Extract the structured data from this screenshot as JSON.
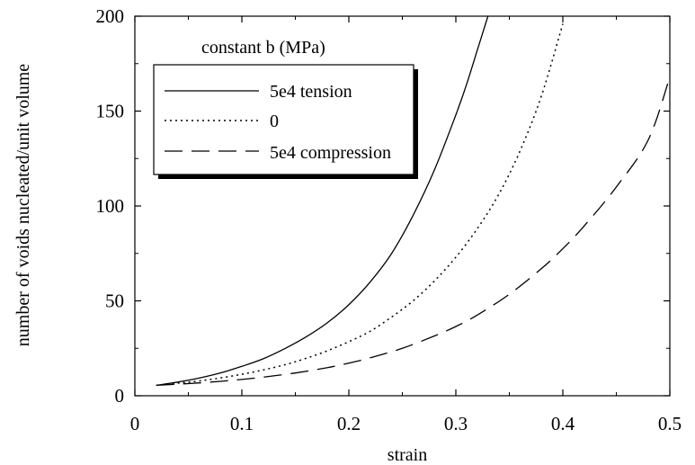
{
  "chart_data": {
    "type": "line",
    "title": "",
    "xlabel": "strain",
    "ylabel": "number of voids nucleated/unit volume",
    "xlim": [
      0,
      0.5
    ],
    "ylim": [
      0,
      200
    ],
    "xticks": [
      0,
      0.1,
      0.2,
      0.3,
      0.4,
      0.5
    ],
    "xtick_labels": [
      "0",
      "0.1",
      "0.2",
      "0.3",
      "0.4",
      "0.5"
    ],
    "yticks": [
      0,
      50,
      100,
      150,
      200
    ],
    "ytick_labels": [
      "0",
      "50",
      "100",
      "150",
      "200"
    ],
    "grid": false,
    "legend": {
      "title": "constant b (MPa)",
      "placement": "top-left"
    },
    "series": [
      {
        "name": "5e4 tension",
        "line_style": "solid",
        "color": "#000000",
        "x": [
          0.02,
          0.04,
          0.06,
          0.08,
          0.1,
          0.12,
          0.14,
          0.16,
          0.18,
          0.2,
          0.22,
          0.24,
          0.26,
          0.28,
          0.3,
          0.31,
          0.32,
          0.33
        ],
        "y": [
          5.5,
          7.2,
          9.3,
          12.0,
          15.5,
          19.5,
          24.8,
          31.0,
          38.5,
          48.0,
          60.0,
          75.0,
          95.0,
          119.0,
          148.0,
          164.0,
          182.0,
          200.0
        ]
      },
      {
        "name": "0",
        "line_style": "dotted",
        "color": "#000000",
        "x": [
          0.02,
          0.04,
          0.06,
          0.08,
          0.1,
          0.12,
          0.14,
          0.16,
          0.18,
          0.2,
          0.22,
          0.24,
          0.26,
          0.28,
          0.3,
          0.32,
          0.34,
          0.36,
          0.38,
          0.4
        ],
        "y": [
          5.5,
          6.6,
          7.8,
          9.4,
          11.3,
          13.6,
          16.3,
          19.7,
          23.7,
          28.5,
          34.0,
          41.5,
          50.0,
          60.5,
          73.0,
          88.0,
          106.0,
          129.0,
          158.0,
          196.0
        ]
      },
      {
        "name": "5e4 compression",
        "line_style": "dashed",
        "color": "#000000",
        "x": [
          0.02,
          0.05,
          0.08,
          0.1,
          0.12,
          0.15,
          0.18,
          0.2,
          0.22,
          0.25,
          0.28,
          0.3,
          0.32,
          0.35,
          0.38,
          0.4,
          0.42,
          0.45,
          0.48,
          0.5
        ],
        "y": [
          5.5,
          6.4,
          7.6,
          8.6,
          9.8,
          12.0,
          14.8,
          17.2,
          20.0,
          25.0,
          31.5,
          36.5,
          42.5,
          53.5,
          67.0,
          77.5,
          89.5,
          110.0,
          135.0,
          168.0
        ]
      }
    ]
  }
}
